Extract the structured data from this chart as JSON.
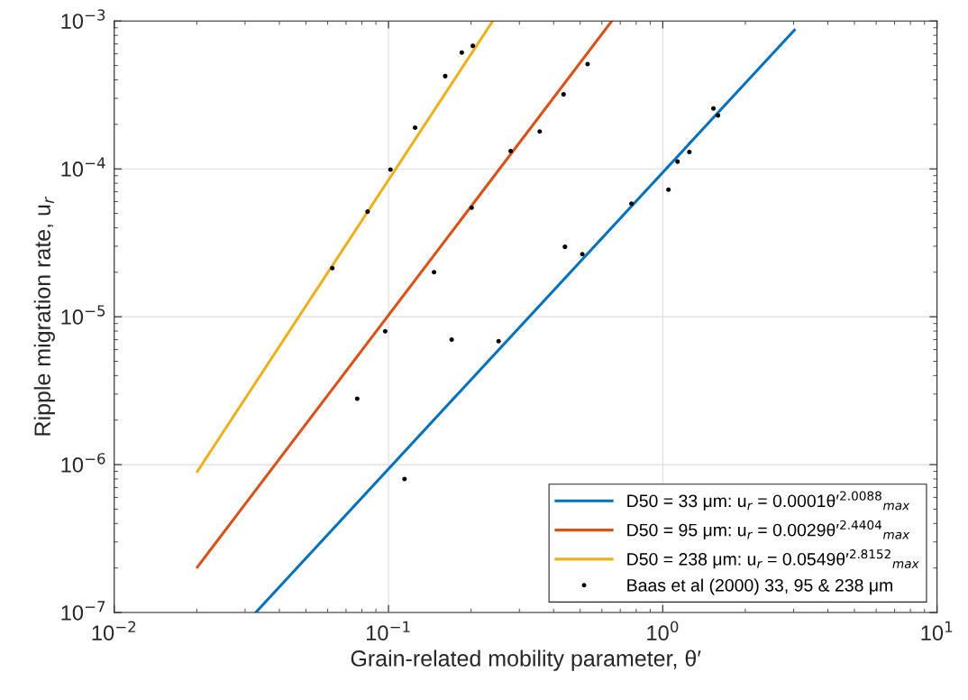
{
  "chart_data": {
    "type": "line",
    "xlabel": "Grain-related mobility parameter, θ′",
    "ylabel": "Ripple migration rate, u$_{r}$",
    "log": "xy",
    "grid": true,
    "legend": "bottom right",
    "xlim": [
      0.01,
      10
    ],
    "ylim": [
      1e-07,
      0.001
    ],
    "xticks": [
      {
        "value": 0.01,
        "label": "10$^{−2}$"
      },
      {
        "value": 0.1,
        "label": "10$^{−1}$"
      },
      {
        "value": 1,
        "label": "10$^{0}$"
      },
      {
        "value": 10,
        "label": "10$^{1}$"
      }
    ],
    "yticks": [
      {
        "value": 1e-07,
        "label": "10$^{−7}$"
      },
      {
        "value": 1e-06,
        "label": "10$^{−6}$"
      },
      {
        "value": 1e-05,
        "label": "10$^{−5}$"
      },
      {
        "value": 0.0001,
        "label": "10$^{−4}$"
      },
      {
        "value": 0.001,
        "label": "10$^{−3}$"
      }
    ],
    "series": [
      {
        "name": "D50 = 33 μm: u$_{r}$ = 0.0001θ′$^{2.0088}$$_{max}$",
        "marker": "none",
        "color": "#0072bd",
        "x": [
          0.0328,
          3.02
        ],
        "values": [
          1e-07,
          0.000868
        ]
      },
      {
        "name": "D50 = 95 μm: u$_{r}$ = 0.0029θ′$^{2.4404}$$_{max}$",
        "marker": "none",
        "color": "#d95319",
        "x": [
          0.0201,
          0.652
        ],
        "values": [
          2.03e-07,
          0.001
        ]
      },
      {
        "name": "D50 = 238 μm: u$_{r}$ = 0.0549θ′$^{2.8152}$$_{max}$",
        "marker": "none",
        "color": "#edb120",
        "x": [
          0.0201,
          0.24
        ],
        "values": [
          9e-07,
          0.001
        ]
      },
      {
        "name": "Baas et al (2000) 33, 95 & 238 μm",
        "type": "scatter",
        "marker": "circle",
        "color": "#000000",
        "x": [
          0.0839,
          0.0624,
          0.0769,
          0.1017,
          0.125,
          0.161,
          0.185,
          0.203,
          0.279,
          0.356,
          0.435,
          0.532,
          0.201,
          0.44,
          0.509,
          0.1466,
          0.0973,
          0.17,
          0.252,
          0.1144,
          0.769,
          1.049,
          1.132,
          1.25,
          1.53,
          1.59
        ],
        "values": [
          5.14e-05,
          2.13e-05,
          2.79e-06,
          9.9e-05,
          0.00019,
          0.000424,
          0.000612,
          0.000679,
          0.000132,
          0.000179,
          0.000319,
          0.000512,
          5.46e-05,
          2.97e-05,
          2.65e-05,
          2e-05,
          7.98e-06,
          7e-06,
          6.84e-06,
          8e-07,
          5.82e-05,
          7.24e-05,
          0.000112,
          0.00013,
          0.000256,
          0.00023
        ]
      }
    ]
  }
}
